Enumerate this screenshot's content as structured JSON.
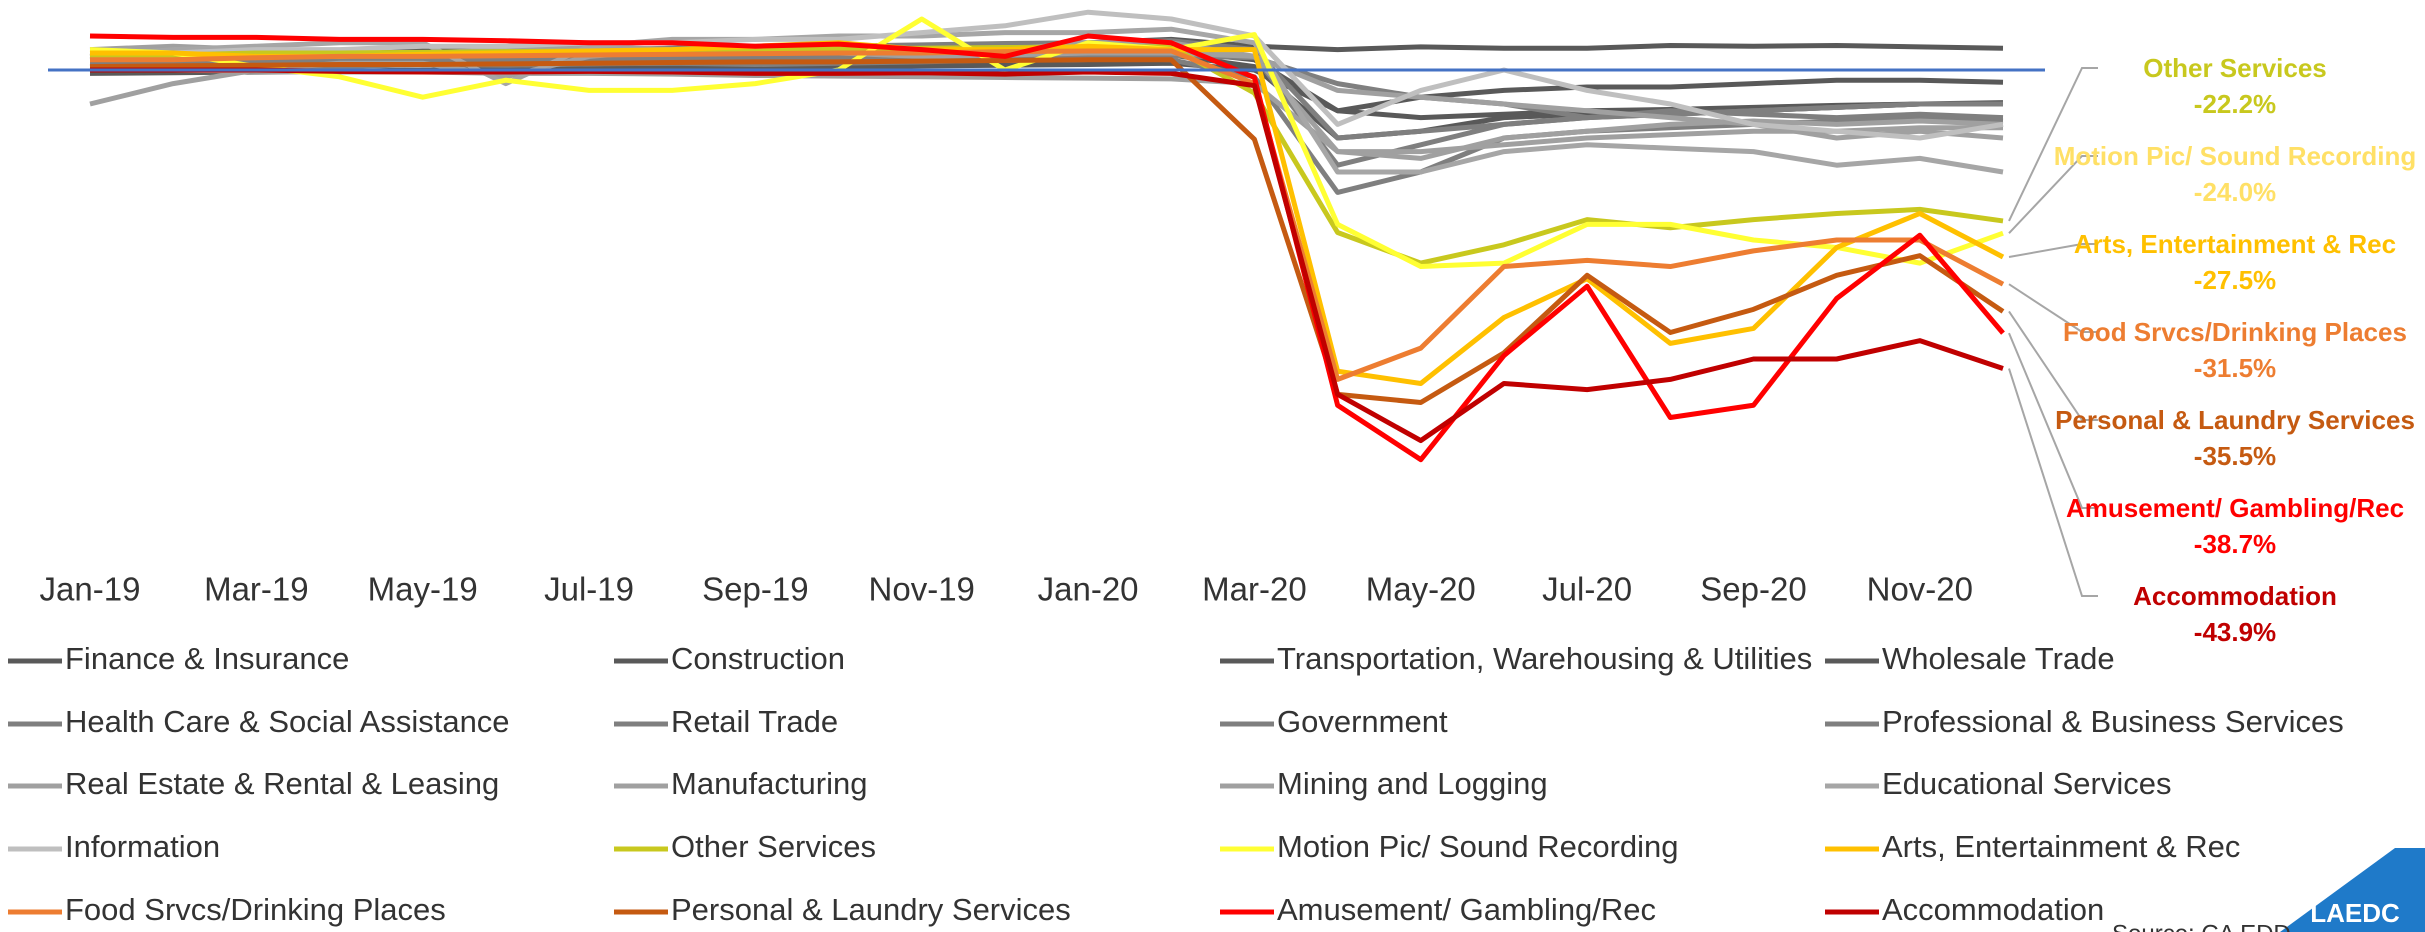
{
  "chart_data": {
    "type": "line",
    "categories": [
      "Jan-19",
      null,
      "Mar-19",
      null,
      "May-19",
      null,
      "Jul-19",
      null,
      "Sep-19",
      null,
      "Nov-19",
      null,
      "Jan-20",
      null,
      "Mar-20",
      null,
      "May-20",
      null,
      "Jul-20",
      null,
      "Sep-20",
      null,
      "Nov-20",
      null
    ],
    "ylim": [
      -60,
      10
    ],
    "baseline": {
      "value": 0,
      "color": "#4472c4"
    },
    "series": [
      {
        "name": "Finance & Insurance",
        "color": "#595959",
        "values": [
          1,
          1,
          1.5,
          1.5,
          1.2,
          1.5,
          1.8,
          2,
          2,
          2.2,
          2.3,
          2.5,
          2.6,
          2.8,
          1.5,
          -6,
          -4,
          -3,
          -2.5,
          -2.5,
          -2,
          -1.5,
          -1.5,
          -1.8
        ]
      },
      {
        "name": "Construction",
        "color": "#595959",
        "values": [
          1.5,
          1.8,
          2,
          2.5,
          3,
          3,
          2.8,
          3.2,
          3.4,
          3.5,
          3.3,
          3.8,
          4,
          4.5,
          3.5,
          3,
          3.4,
          3.2,
          3.2,
          3.6,
          3.5,
          3.6,
          3.4,
          3.2
        ]
      },
      {
        "name": "Transportation, Warehousing & Utilities",
        "color": "#595959",
        "values": [
          0.5,
          0.6,
          0.8,
          1,
          1,
          1.2,
          1.3,
          1.4,
          1.5,
          1.6,
          1.7,
          1.8,
          2,
          2.2,
          0.5,
          -10,
          -9,
          -7,
          -6.5,
          -6.5,
          -6,
          -5.5,
          -5,
          -5
        ]
      },
      {
        "name": "Wholesale Trade",
        "color": "#595959",
        "values": [
          -0.5,
          -0.4,
          -0.3,
          -0.2,
          0,
          0,
          0.2,
          0.3,
          0.4,
          0.5,
          0.6,
          0.7,
          0.8,
          1,
          0,
          -6,
          -7,
          -6.5,
          -6,
          -5.8,
          -5.5,
          -5.2,
          -5,
          -4.8
        ]
      },
      {
        "name": "Health Care & Social Assistance",
        "color": "#7f7f7f",
        "values": [
          0.5,
          0.8,
          1,
          1.2,
          1.5,
          1.6,
          1.8,
          2,
          2.1,
          2.3,
          2.4,
          2.6,
          2.8,
          3,
          2,
          -14,
          -11,
          -8,
          -7,
          -6.5,
          -6,
          -5.5,
          -5,
          -5
        ]
      },
      {
        "name": "Retail Trade",
        "color": "#7f7f7f",
        "values": [
          0,
          0.2,
          0.5,
          0.5,
          0.8,
          0.7,
          0.9,
          1,
          0.8,
          1,
          1.2,
          1.5,
          1.8,
          1.5,
          -1,
          -18,
          -15,
          -10,
          -9,
          -8.5,
          -8,
          -7.5,
          -7,
          -7.5
        ]
      },
      {
        "name": "Government",
        "color": "#7f7f7f",
        "values": [
          1,
          1,
          1.2,
          1.3,
          1.4,
          1.5,
          1.6,
          1.7,
          1.7,
          1.8,
          1.9,
          2,
          2,
          2.1,
          1.8,
          -2,
          -4,
          -5,
          -7,
          -6,
          -6.5,
          -7,
          -6.5,
          -7
        ]
      },
      {
        "name": "Professional & Business Services",
        "color": "#7f7f7f",
        "values": [
          1.5,
          1.8,
          2,
          2.3,
          2.5,
          2.7,
          3,
          3.2,
          3.4,
          3.5,
          3.7,
          3.9,
          4,
          4.3,
          3,
          -10,
          -9,
          -8,
          -7,
          -6.5,
          -6,
          -5.5,
          -5,
          -5
        ]
      },
      {
        "name": "Real Estate & Rental & Leasing",
        "color": "#a0a0a0",
        "values": [
          -5,
          -2,
          0,
          1,
          1,
          -1,
          2,
          3,
          3,
          3.5,
          3,
          3,
          4,
          4,
          2,
          -12,
          -13,
          -10,
          -9,
          -8,
          -7.5,
          -8,
          -7.5,
          -8
        ]
      },
      {
        "name": "Manufacturing",
        "color": "#a0a0a0",
        "values": [
          0,
          0,
          -0.2,
          -0.3,
          -0.3,
          -0.5,
          -0.5,
          -0.6,
          -0.8,
          -0.9,
          -1,
          -1.1,
          -1.2,
          -1.3,
          -2,
          -12,
          -12,
          -11,
          -10,
          -9.5,
          -9,
          -9,
          -8.5,
          -8.5
        ]
      },
      {
        "name": "Mining and Logging",
        "color": "#a0a0a0",
        "values": [
          3,
          3.5,
          3,
          2,
          2.5,
          3,
          3.5,
          3,
          3,
          2.5,
          2,
          2.2,
          2.5,
          2.5,
          2,
          -3,
          -4,
          -5,
          -6,
          -7,
          -8,
          -10,
          -9,
          -10
        ]
      },
      {
        "name": "Educational Services",
        "color": "#a6a6a6",
        "values": [
          2,
          3,
          3.5,
          4,
          4,
          -2,
          3.5,
          4.5,
          4.5,
          5,
          5,
          5.5,
          5.5,
          6,
          4,
          -15,
          -15,
          -12,
          -11,
          -11.5,
          -12,
          -14,
          -13,
          -15
        ]
      },
      {
        "name": "Information",
        "color": "#bfbfbf",
        "values": [
          2,
          2.5,
          3,
          3,
          3.5,
          3.5,
          4,
          4,
          4.5,
          4.5,
          5.5,
          6.5,
          8.5,
          7.5,
          5,
          -8,
          -3,
          0,
          -3,
          -5,
          -8,
          -9,
          -10,
          -8
        ]
      },
      {
        "name": "Other Services",
        "color": "#c8c81e",
        "values": [
          2,
          2.2,
          2.5,
          2.5,
          2.6,
          2.7,
          2.8,
          2.9,
          3,
          3.1,
          3.2,
          3.3,
          3.4,
          3.4,
          -3.4,
          -23.9,
          -28.4,
          -25.7,
          -22,
          -23.2,
          -22,
          -21.1,
          -20.5,
          -22.2
        ]
      },
      {
        "name": "Motion Pic/ Sound Recording",
        "color": "#ffff33",
        "values": [
          3,
          2.5,
          0.5,
          -1,
          -4,
          -1.5,
          -3,
          -3,
          -2,
          0,
          7.5,
          0,
          4,
          3,
          5.2,
          -22.7,
          -28.9,
          -28.4,
          -22.7,
          -22.7,
          -25,
          -26.1,
          -28.4,
          -24.0
        ]
      },
      {
        "name": "Arts, Entertainment & Rec",
        "color": "#ffc000",
        "values": [
          2.5,
          2.5,
          2,
          2,
          2.3,
          2.5,
          2.8,
          3,
          3.5,
          4,
          3,
          3,
          3.5,
          3,
          3,
          -44.3,
          -46.1,
          -36.4,
          -30.7,
          -40.2,
          -38,
          -26.1,
          -21.1,
          -27.5
        ]
      },
      {
        "name": "Food Srvcs/Drinking Places",
        "color": "#ed7d31",
        "values": [
          1.5,
          1.5,
          1.8,
          2,
          2,
          2.1,
          2.2,
          2.3,
          2.4,
          2.5,
          2.5,
          2.7,
          2.8,
          2.8,
          -2,
          -45.5,
          -40.9,
          -28.9,
          -28,
          -28.9,
          -26.6,
          -25,
          -25,
          -31.5
        ]
      },
      {
        "name": "Personal & Laundry Services",
        "color": "#c55a11",
        "values": [
          0.5,
          0.6,
          0.7,
          0.8,
          0.8,
          0.9,
          1,
          1.1,
          1.2,
          1.2,
          1.3,
          1.4,
          1.5,
          1.5,
          -10.2,
          -47.7,
          -48.9,
          -41.6,
          -30.2,
          -38.6,
          -35.2,
          -30.2,
          -27.3,
          -35.5
        ]
      },
      {
        "name": "Amusement/ Gambling/Rec",
        "color": "#ff0000",
        "values": [
          5,
          4.8,
          4.8,
          4.5,
          4.5,
          4.3,
          4,
          4,
          3.5,
          3.8,
          3,
          2,
          5,
          4,
          -1.1,
          -49.3,
          -57.3,
          -42,
          -31.8,
          -51.1,
          -49.3,
          -33.6,
          -24.3,
          -38.7
        ]
      },
      {
        "name": "Accommodation",
        "color": "#c00000",
        "values": [
          0,
          0,
          0,
          -0.2,
          -0.3,
          -0.3,
          -0.2,
          -0.3,
          -0.5,
          -0.5,
          -0.4,
          -0.6,
          -0.3,
          -0.5,
          -2.3,
          -47.7,
          -54.5,
          -46.1,
          -47,
          -45.5,
          -42.5,
          -42.5,
          -39.8,
          -43.9
        ]
      }
    ],
    "annotations": [
      {
        "series": 13,
        "text": "Other Services",
        "value_label": "-22.2%",
        "color": "#c8c81e"
      },
      {
        "series": 14,
        "text": "Motion Pic/ Sound Recording",
        "value_label": "-24.0%",
        "color": "#ffe066"
      },
      {
        "series": 15,
        "text": "Arts, Entertainment & Rec",
        "value_label": "-27.5%",
        "color": "#ffc000"
      },
      {
        "series": 16,
        "text": "Food Srvcs/Drinking Places",
        "value_label": "-31.5%",
        "color": "#ed7d31"
      },
      {
        "series": 17,
        "text": "Personal & Laundry Services",
        "value_label": "-35.5%",
        "color": "#c55a11"
      },
      {
        "series": 18,
        "text": "Amusement/ Gambling/Rec",
        "value_label": "-38.7%",
        "color": "#ff0000"
      },
      {
        "series": 19,
        "text": "Accommodation",
        "value_label": "-43.9%",
        "color": "#c00000"
      }
    ],
    "legend": "bottom",
    "source": "Source: CA EDD",
    "logo": "LAEDC"
  }
}
